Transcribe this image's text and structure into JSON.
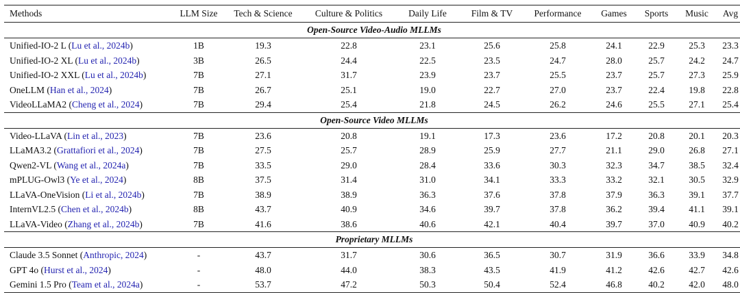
{
  "colors": {
    "citation_link": "#2323b0",
    "rule": "#222222",
    "text": "#111111"
  },
  "table": {
    "columns": [
      "Methods",
      "LLM Size",
      "Tech & Science",
      "Culture & Politics",
      "Daily Life",
      "Film & TV",
      "Performance",
      "Games",
      "Sports",
      "Music",
      "Avg"
    ],
    "sections": [
      {
        "title": "Open-Source Video-Audio MLLMs",
        "rows": [
          {
            "method": "Unified-IO-2 L",
            "citation": "Lu et al., 2024b",
            "size": "1B",
            "values": [
              "19.3",
              "22.8",
              "23.1",
              "25.6",
              "25.8",
              "24.1",
              "22.9",
              "25.3",
              "23.3"
            ]
          },
          {
            "method": "Unified-IO-2 XL",
            "citation": "Lu et al., 2024b",
            "size": "3B",
            "values": [
              "26.5",
              "24.4",
              "22.5",
              "23.5",
              "24.7",
              "28.0",
              "25.7",
              "24.2",
              "24.7"
            ]
          },
          {
            "method": "Unified-IO-2 XXL",
            "citation": "Lu et al., 2024b",
            "size": "7B",
            "values": [
              "27.1",
              "31.7",
              "23.9",
              "23.7",
              "25.5",
              "23.7",
              "25.7",
              "27.3",
              "25.9"
            ]
          },
          {
            "method": "OneLLM",
            "citation": "Han et al., 2024",
            "size": "7B",
            "values": [
              "26.7",
              "25.1",
              "19.0",
              "22.7",
              "27.0",
              "23.7",
              "22.4",
              "19.8",
              "22.8"
            ]
          },
          {
            "method": "VideoLLaMA2",
            "citation": "Cheng et al., 2024",
            "size": "7B",
            "values": [
              "29.4",
              "25.4",
              "21.8",
              "24.5",
              "26.2",
              "24.6",
              "25.5",
              "27.1",
              "25.4"
            ]
          }
        ]
      },
      {
        "title": "Open-Source Video MLLMs",
        "rows": [
          {
            "method": "Video-LLaVA",
            "citation": "Lin et al., 2023",
            "size": "7B",
            "values": [
              "23.6",
              "20.8",
              "19.1",
              "17.3",
              "23.6",
              "17.2",
              "20.8",
              "20.1",
              "20.3"
            ]
          },
          {
            "method": "LLaMA3.2",
            "citation": "Grattafiori et al., 2024",
            "size": "7B",
            "values": [
              "27.5",
              "25.7",
              "28.9",
              "25.9",
              "27.7",
              "21.1",
              "29.0",
              "26.8",
              "27.1"
            ]
          },
          {
            "method": "Qwen2-VL",
            "citation": "Wang et al., 2024a",
            "size": "7B",
            "values": [
              "33.5",
              "29.0",
              "28.4",
              "33.6",
              "30.3",
              "32.3",
              "34.7",
              "38.5",
              "32.4"
            ]
          },
          {
            "method": "mPLUG-Owl3",
            "citation": "Ye et al., 2024",
            "size": "8B",
            "values": [
              "37.5",
              "31.4",
              "31.0",
              "34.1",
              "33.3",
              "33.2",
              "32.1",
              "30.5",
              "32.9"
            ]
          },
          {
            "method": "LLaVA-OneVision",
            "citation": "Li et al., 2024b",
            "size": "7B",
            "values": [
              "38.9",
              "38.9",
              "36.3",
              "37.6",
              "37.8",
              "37.9",
              "36.3",
              "39.1",
              "37.7"
            ]
          },
          {
            "method": "InternVL2.5",
            "citation": "Chen et al., 2024b",
            "size": "8B",
            "values": [
              "43.7",
              "40.9",
              "34.6",
              "39.7",
              "37.8",
              "36.2",
              "39.4",
              "41.1",
              "39.1"
            ]
          },
          {
            "method": "LLaVA-Video",
            "citation": "Zhang et al., 2024b",
            "size": "7B",
            "values": [
              "41.6",
              "38.6",
              "40.6",
              "42.1",
              "40.4",
              "39.7",
              "37.0",
              "40.9",
              "40.2"
            ]
          }
        ]
      },
      {
        "title": "Proprietary MLLMs",
        "rows": [
          {
            "method": "Claude 3.5 Sonnet",
            "citation": "Anthropic, 2024",
            "size": "-",
            "values": [
              "43.7",
              "31.7",
              "30.6",
              "36.5",
              "30.7",
              "31.9",
              "36.6",
              "33.9",
              "34.8"
            ]
          },
          {
            "method": "GPT 4o",
            "citation": "Hurst et al., 2024",
            "size": "-",
            "values": [
              "48.0",
              "44.0",
              "38.3",
              "43.5",
              "41.9",
              "41.2",
              "42.6",
              "42.7",
              "42.6"
            ]
          },
          {
            "method": "Gemini 1.5 Pro",
            "citation": "Team et al., 2024a",
            "size": "-",
            "values": [
              "53.7",
              "47.2",
              "50.3",
              "50.4",
              "52.4",
              "46.8",
              "40.2",
              "42.0",
              "48.0"
            ]
          }
        ]
      }
    ]
  }
}
